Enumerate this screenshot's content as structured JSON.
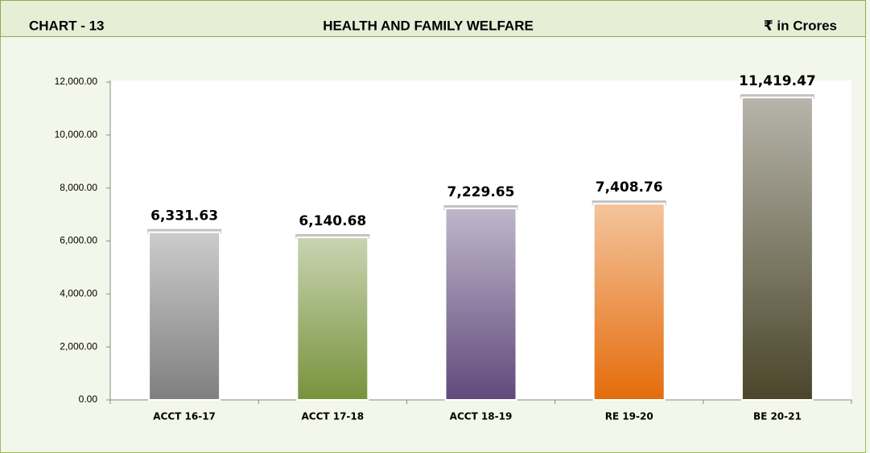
{
  "header": {
    "label": "CHART - 13",
    "title": "HEALTH AND FAMILY WELFARE",
    "unit": "₹ in Crores"
  },
  "chart_data": {
    "type": "bar",
    "categories": [
      "ACCT 16-17",
      "ACCT 17-18",
      "ACCT 18-19",
      "RE 19-20",
      "BE 20-21"
    ],
    "values": [
      6331.63,
      6140.68,
      7229.65,
      7408.76,
      11419.47
    ],
    "value_labels": [
      "6,331.63",
      "6,140.68",
      "7,229.65",
      "7,408.76",
      "11,419.47"
    ],
    "colors": [
      "#7f7f7f",
      "#77933c",
      "#604a7b",
      "#e46c0a",
      "#4a452a"
    ],
    "ylim": [
      0,
      12000
    ],
    "yticks": [
      {
        "value": 0,
        "label": "0.00"
      },
      {
        "value": 2000,
        "label": "2,000.00"
      },
      {
        "value": 4000,
        "label": "4,000.00"
      },
      {
        "value": 6000,
        "label": "6,000.00"
      },
      {
        "value": 8000,
        "label": "8,000.00"
      },
      {
        "value": 10000,
        "label": "10,000.00"
      },
      {
        "value": 12000,
        "label": "12,000.00"
      }
    ]
  }
}
